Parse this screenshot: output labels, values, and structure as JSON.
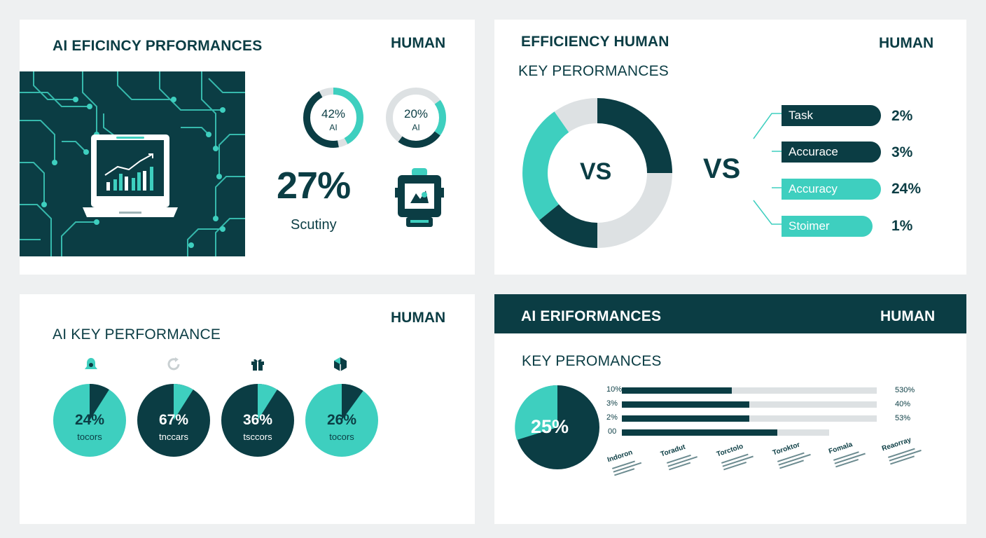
{
  "colors": {
    "dark": "#0b3d44",
    "teal": "#3ecfbf",
    "light": "#dde1e3"
  },
  "panel1": {
    "title": "AI EFICINCY PRFORMANCES",
    "human": "HUMAN",
    "image_icon": "laptop-chart-icon",
    "ring1": {
      "pct": "42%",
      "label": "AI",
      "value": 42
    },
    "ring2": {
      "pct": "20%",
      "label": "AI",
      "value": 20
    },
    "big_stat": "27%",
    "big_label": "Scutiny",
    "robot_icon": "robot-icon"
  },
  "panel2": {
    "title": "EFFICIENCY HUMAN",
    "subtitle": "KEY PERORMANCES",
    "human": "HUMAN",
    "donut_label": "VS",
    "vs": "VS",
    "bars": [
      {
        "label": "Task",
        "value": "2%"
      },
      {
        "label": "Accurace",
        "value": "3%"
      },
      {
        "label": "Accuracy",
        "value": "24%"
      },
      {
        "label": "Stoimer",
        "value": "1%"
      }
    ]
  },
  "panel3": {
    "title": "AI KEY PERFORMANCE",
    "human": "HUMAN",
    "pies": [
      {
        "pct": "24%",
        "label": "tocors",
        "value": 24,
        "icon": "bell-icon"
      },
      {
        "pct": "67%",
        "label": "tnccars",
        "value": 67,
        "icon": "refresh-icon"
      },
      {
        "pct": "36%",
        "label": "tsccors",
        "value": 36,
        "icon": "gift-icon"
      },
      {
        "pct": "26%",
        "label": "tocors",
        "value": 26,
        "icon": "hexagon-icon"
      }
    ]
  },
  "panel4": {
    "title": "AI ERIFORMANCES",
    "human": "HUMAN",
    "subtitle": "KEY PEROMANCES",
    "pie_pct": "25%",
    "rows": [
      {
        "left": "10%",
        "right": "530%"
      },
      {
        "left": "3%",
        "right": "40%"
      },
      {
        "left": "2%",
        "right": "53%"
      },
      {
        "left": "00",
        "right": ""
      }
    ],
    "columns": [
      "Indoron",
      "Toradut",
      "Torctolo",
      "Toroktor",
      "Fomala",
      "Reaorray"
    ]
  },
  "chart_data": [
    {
      "type": "pie",
      "title": "AI EFICINCY PRFORMANCES",
      "series": [
        {
          "name": "AI",
          "values": [
            42
          ]
        },
        {
          "name": "AI",
          "values": [
            20
          ]
        }
      ],
      "annotations": [
        "27%",
        "Scutiny"
      ]
    },
    {
      "type": "bar",
      "title": "EFFICIENCY HUMAN",
      "categories": [
        "Task",
        "Accurace",
        "Accuracy",
        "Stoimer"
      ],
      "values": [
        2,
        3,
        24,
        1
      ]
    },
    {
      "type": "pie",
      "title": "AI KEY PERFORMANCE",
      "categories": [
        "tocors",
        "tnccars",
        "tsccors",
        "tocors"
      ],
      "values": [
        24,
        67,
        36,
        26
      ]
    },
    {
      "type": "bar",
      "title": "AI ERIFORMANCES",
      "categories": [
        "10%",
        "3%",
        "2%",
        "00"
      ],
      "series": [
        {
          "values": [
            0.43,
            0.5,
            0.5,
            0.61
          ]
        }
      ],
      "annotations": [
        "25%",
        "530%",
        "40%",
        "53%"
      ]
    }
  ]
}
